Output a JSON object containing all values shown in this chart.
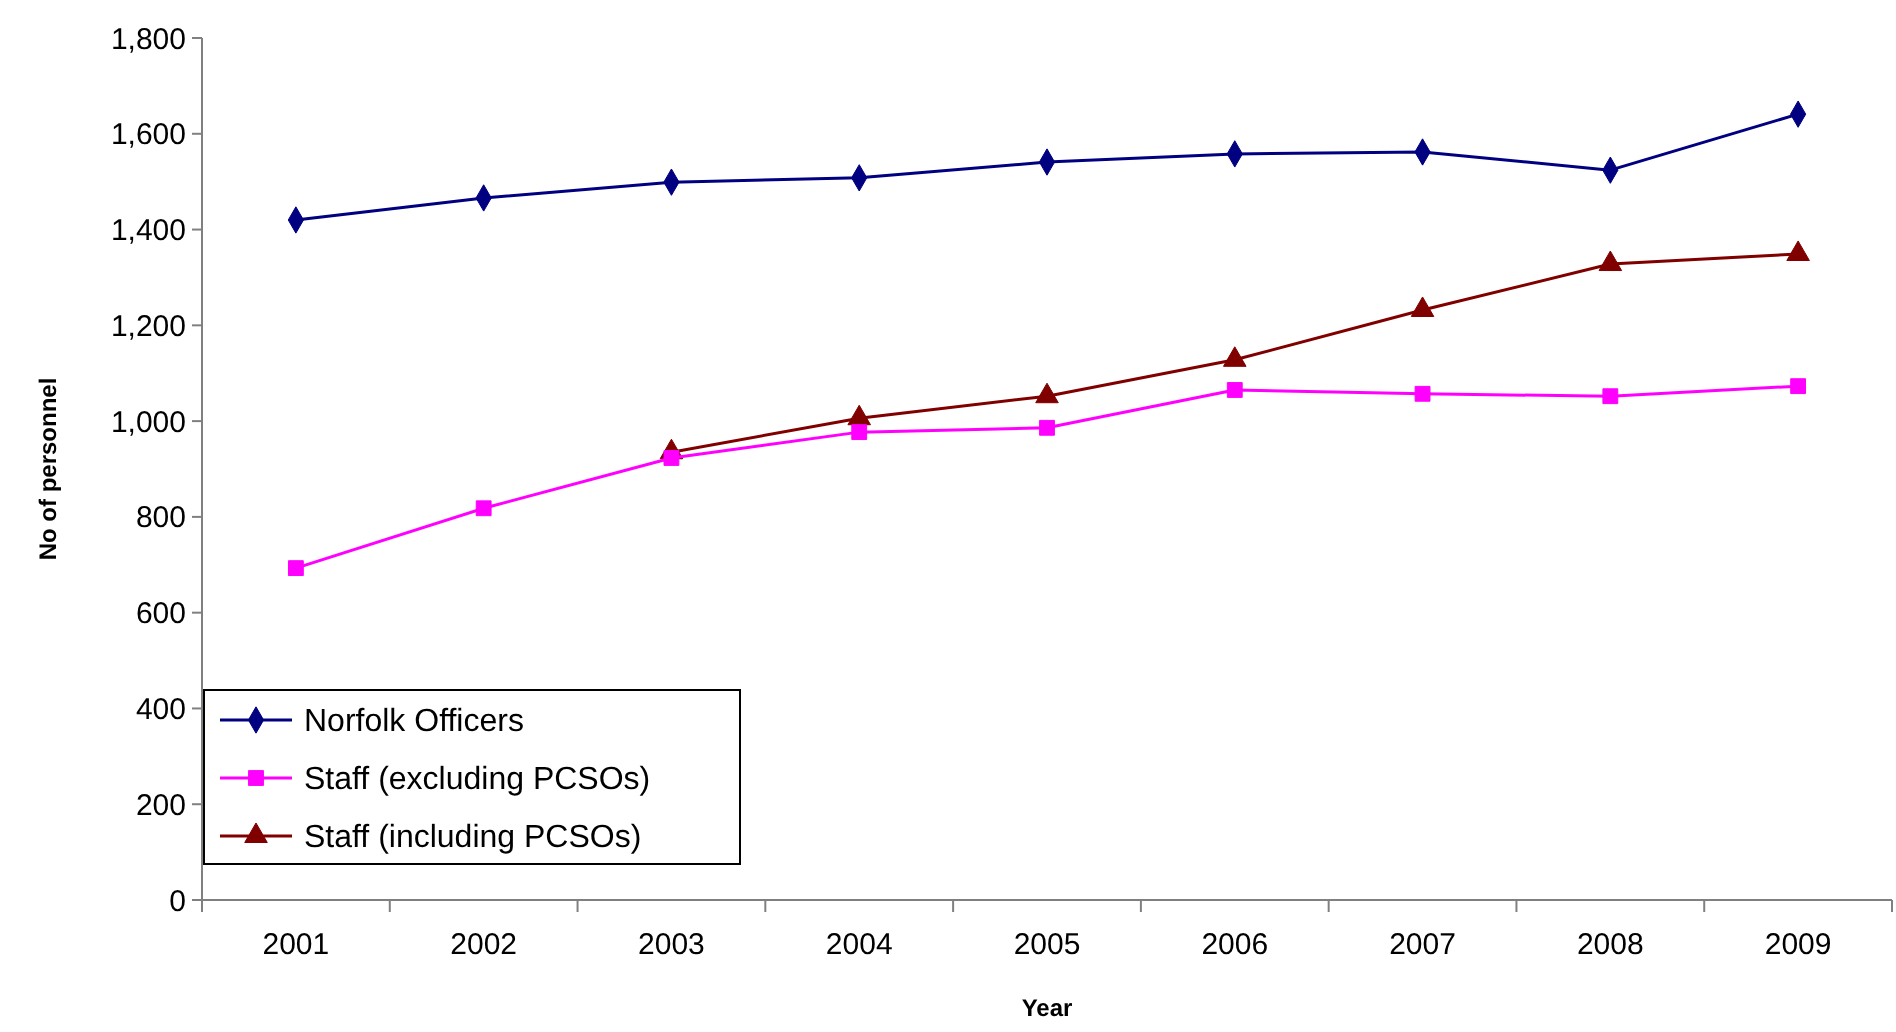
{
  "chart_data": {
    "type": "line",
    "xlabel": "Year",
    "ylabel": "No of personnel",
    "categories": [
      "2001",
      "2002",
      "2003",
      "2004",
      "2005",
      "2006",
      "2007",
      "2008",
      "2009"
    ],
    "ylim": [
      0,
      1800
    ],
    "yticks": [
      {
        "value": 0,
        "label": "0"
      },
      {
        "value": 200,
        "label": "200"
      },
      {
        "value": 400,
        "label": "400"
      },
      {
        "value": 600,
        "label": "600"
      },
      {
        "value": 800,
        "label": "800"
      },
      {
        "value": 1000,
        "label": "1,000"
      },
      {
        "value": 1200,
        "label": "1,200"
      },
      {
        "value": 1400,
        "label": "1,400"
      },
      {
        "value": 1600,
        "label": "1,600"
      },
      {
        "value": 1800,
        "label": "1,800"
      }
    ],
    "grid": false,
    "legend": "bottom left",
    "series": [
      {
        "name": "Norfolk Officers",
        "color": "#000080",
        "marker": "diamond",
        "values": [
          1420,
          1466,
          1499,
          1508,
          1541,
          1558,
          1562,
          1524,
          1641
        ]
      },
      {
        "name": "Staff (excluding PCSOs)",
        "color": "#ff00ff",
        "marker": "square",
        "values": [
          693,
          818,
          923,
          977,
          986,
          1065,
          1057,
          1052,
          1073
        ]
      },
      {
        "name": "Staff (including PCSOs)",
        "color": "#800000",
        "marker": "triangle",
        "values": [
          null,
          null,
          935,
          1006,
          1052,
          1128,
          1232,
          1328,
          1349
        ]
      }
    ]
  }
}
